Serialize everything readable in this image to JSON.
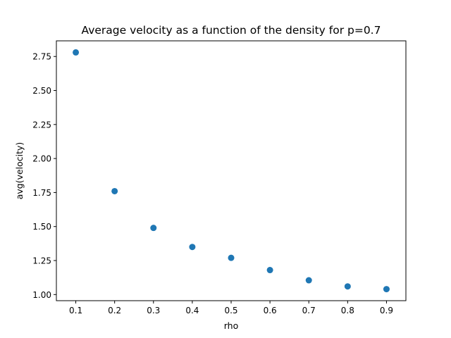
{
  "chart_data": {
    "type": "scatter",
    "title": "Average velocity as a function of the density for p=0.7",
    "xlabel": "rho",
    "ylabel": "avg(velocity)",
    "x": [
      0.1,
      0.2,
      0.3,
      0.4,
      0.5,
      0.6,
      0.7,
      0.8,
      0.9
    ],
    "y": [
      2.78,
      1.76,
      1.49,
      1.35,
      1.27,
      1.18,
      1.105,
      1.06,
      1.04
    ],
    "xlim": [
      0.05,
      0.95
    ],
    "ylim": [
      0.955,
      2.865
    ],
    "xticks": [
      0.1,
      0.2,
      0.3,
      0.4,
      0.5,
      0.6,
      0.7,
      0.8,
      0.9
    ],
    "xtick_labels": [
      "0.1",
      "0.2",
      "0.3",
      "0.4",
      "0.5",
      "0.6",
      "0.7",
      "0.8",
      "0.9"
    ],
    "yticks": [
      1.0,
      1.25,
      1.5,
      1.75,
      2.0,
      2.25,
      2.5,
      2.75
    ],
    "ytick_labels": [
      "1.00",
      "1.25",
      "1.50",
      "1.75",
      "2.00",
      "2.25",
      "2.50",
      "2.75"
    ],
    "grid": false,
    "marker_color": "#1f77b4"
  }
}
